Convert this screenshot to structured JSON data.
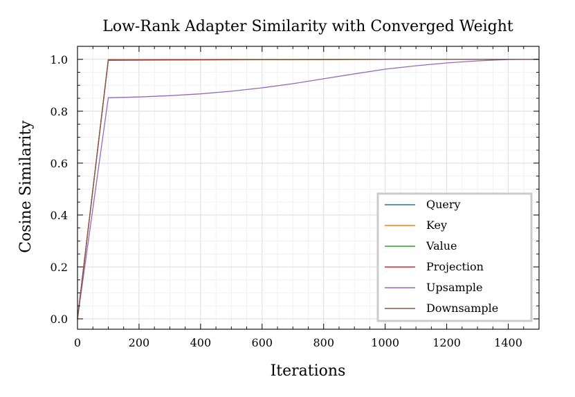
{
  "chart_data": {
    "type": "line",
    "title": "Low-Rank Adapter Similarity with Converged Weight",
    "xlabel": "Iterations",
    "ylabel": "Cosine Similarity",
    "xlim": [
      0,
      1500
    ],
    "ylim": [
      -0.04,
      1.05
    ],
    "xticks": [
      0,
      200,
      400,
      600,
      800,
      1000,
      1200,
      1400
    ],
    "yticks": [
      0.0,
      0.2,
      0.4,
      0.6,
      0.8,
      1.0
    ],
    "xtick_labels": [
      "0",
      "200",
      "400",
      "600",
      "800",
      "1000",
      "1200",
      "1400"
    ],
    "ytick_labels": [
      "0.0",
      "0.2",
      "0.4",
      "0.6",
      "0.8",
      "1.0"
    ],
    "grid": true,
    "legend_position": "lower-right",
    "x": [
      0,
      100,
      200,
      300,
      400,
      500,
      600,
      700,
      800,
      900,
      1000,
      1100,
      1200,
      1300,
      1400,
      1500
    ],
    "series": [
      {
        "name": "Query",
        "color": "#1f77b4",
        "values": [
          0.0,
          0.997,
          0.9975,
          0.998,
          0.9983,
          0.9986,
          0.9988,
          0.999,
          0.9992,
          0.9994,
          0.9996,
          0.9997,
          0.9998,
          0.9999,
          1.0,
          1.0
        ]
      },
      {
        "name": "Key",
        "color": "#ff7f0e",
        "values": [
          0.0,
          0.997,
          0.9975,
          0.998,
          0.9983,
          0.9986,
          0.9988,
          0.999,
          0.9992,
          0.9994,
          0.9996,
          0.9997,
          0.9998,
          0.9999,
          1.0,
          1.0
        ]
      },
      {
        "name": "Value",
        "color": "#2ca02c",
        "values": [
          0.0,
          0.996,
          0.9965,
          0.997,
          0.9975,
          0.998,
          0.9984,
          0.9988,
          0.9991,
          0.9993,
          0.9995,
          0.9997,
          0.9998,
          0.9999,
          1.0,
          1.0
        ]
      },
      {
        "name": "Projection",
        "color": "#d62728",
        "values": [
          0.0,
          0.998,
          0.9982,
          0.9984,
          0.9986,
          0.9988,
          0.999,
          0.9992,
          0.9994,
          0.9995,
          0.9996,
          0.9997,
          0.9998,
          0.9999,
          1.0,
          1.0
        ]
      },
      {
        "name": "Upsample",
        "color": "#9467bd",
        "values": [
          0.0,
          0.852,
          0.855,
          0.86,
          0.867,
          0.877,
          0.89,
          0.906,
          0.925,
          0.944,
          0.962,
          0.975,
          0.986,
          0.994,
          0.999,
          1.0
        ]
      },
      {
        "name": "Downsample",
        "color": "#8c564b",
        "values": [
          0.0,
          0.999,
          0.9992,
          0.9993,
          0.9994,
          0.9995,
          0.9996,
          0.9997,
          0.9998,
          0.9998,
          0.9999,
          0.9999,
          1.0,
          1.0,
          1.0,
          1.0
        ]
      }
    ]
  }
}
